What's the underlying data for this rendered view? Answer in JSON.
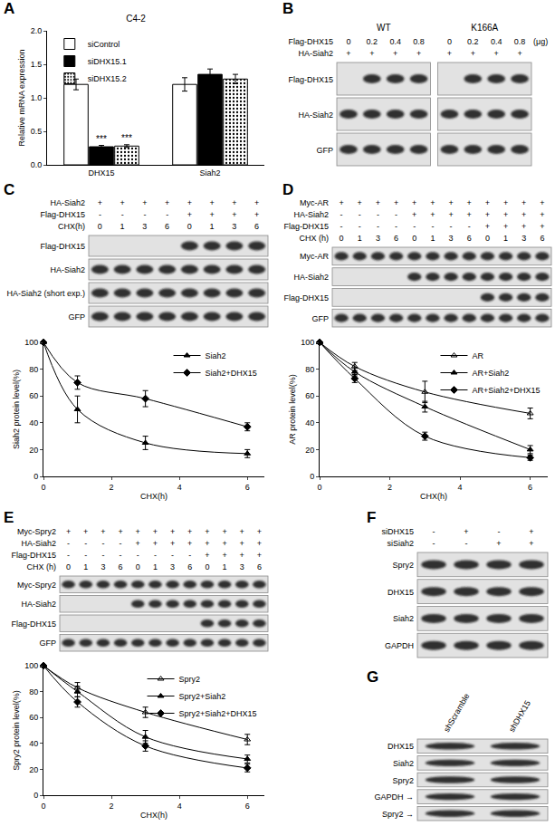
{
  "chart_data": [
    {
      "type": "bar",
      "title": "C4-2",
      "categories": [
        "DHX15",
        "Siah2"
      ],
      "series": [
        {
          "name": "siControl",
          "color": "#ffffff",
          "values": [
            1.2,
            1.2
          ],
          "errors": [
            0.08,
            0.1
          ]
        },
        {
          "name": "siDHX15.1",
          "color": "#000000",
          "values": [
            0.27,
            1.35
          ],
          "errors": [
            0.02,
            0.08
          ],
          "annotations": [
            "***",
            null
          ]
        },
        {
          "name": "siDHX15.2",
          "color": "#ffffff",
          "marker": "dotted",
          "values": [
            0.28,
            1.28
          ],
          "errors": [
            0.02,
            0.07
          ],
          "annotations": [
            "***",
            null
          ]
        }
      ],
      "ylabel": "Relative mRNA expression",
      "ylim": [
        0,
        2.0
      ],
      "yticks": [
        {
          "value": 0,
          "label": "0.0"
        },
        0.5,
        {
          "value": 1,
          "label": "1.0"
        },
        1.5,
        {
          "value": 2,
          "label": "2.0"
        }
      ],
      "legend": "upper left",
      "grid": false
    },
    {
      "type": "line",
      "x": [
        0,
        1,
        3,
        6
      ],
      "series": [
        {
          "name": "Siah2",
          "color": "#000000",
          "marker": "triangle",
          "values": [
            100,
            50,
            25,
            17
          ],
          "errors": [
            0,
            10,
            5,
            3
          ]
        },
        {
          "name": "Siah2+DHX15",
          "color": "#000000",
          "marker": "diamond",
          "values": [
            100,
            70,
            58,
            37
          ],
          "errors": [
            0,
            5,
            6,
            3
          ]
        }
      ],
      "xlabel": "CHX(h)",
      "ylabel": "Siah2 protein level(%)",
      "xlim": [
        0,
        6.5
      ],
      "xticks": [
        0,
        2,
        4,
        6
      ],
      "ylim": [
        0,
        100
      ],
      "yticks": [
        0,
        20,
        40,
        60,
        80,
        100
      ],
      "legend": "upper right",
      "grid": false,
      "line_style": "solid"
    },
    {
      "type": "line",
      "x": [
        0,
        1,
        3,
        6
      ],
      "series": [
        {
          "name": "AR",
          "color": "#000000",
          "marker": "triangle-open",
          "values": [
            100,
            82,
            63,
            47
          ],
          "errors": [
            0,
            3,
            8,
            4
          ]
        },
        {
          "name": "AR+Siah2",
          "color": "#000000",
          "marker": "triangle",
          "values": [
            100,
            78,
            52,
            20
          ],
          "errors": [
            0,
            3,
            4,
            3
          ]
        },
        {
          "name": "AR+Siah2+DHX15",
          "color": "#000000",
          "marker": "diamond",
          "values": [
            100,
            73,
            30,
            14
          ],
          "errors": [
            0,
            3,
            3,
            2
          ]
        }
      ],
      "xlabel": "CHX(h)",
      "ylabel": "AR protein level(%)",
      "xlim": [
        0,
        6.5
      ],
      "xticks": [
        0,
        2,
        4,
        6
      ],
      "ylim": [
        0,
        100
      ],
      "yticks": [
        0,
        20,
        40,
        60,
        80,
        100
      ],
      "legend": "upper right",
      "grid": false,
      "line_style": "solid"
    },
    {
      "type": "line",
      "x": [
        0,
        1,
        3,
        6
      ],
      "series": [
        {
          "name": "Spry2",
          "color": "#000000",
          "marker": "triangle-open",
          "values": [
            100,
            83,
            64,
            43
          ],
          "errors": [
            0,
            4,
            4,
            4
          ]
        },
        {
          "name": "Spry2+Siah2",
          "color": "#000000",
          "marker": "triangle",
          "values": [
            100,
            80,
            45,
            28
          ],
          "errors": [
            0,
            4,
            5,
            3
          ]
        },
        {
          "name": "Spry2+Siah2+DHX15",
          "color": "#000000",
          "marker": "diamond",
          "values": [
            100,
            72,
            38,
            21
          ],
          "errors": [
            0,
            4,
            4,
            3
          ]
        }
      ],
      "xlabel": "CHX(h)",
      "ylabel": "Spry2 protein level(%)",
      "xlim": [
        0,
        6.5
      ],
      "xticks": [
        0,
        2,
        4,
        6
      ],
      "ylim": [
        0,
        100
      ],
      "yticks": [
        0,
        20,
        40,
        60,
        80,
        100
      ],
      "legend": "upper right",
      "grid": false,
      "line_style": "solid"
    }
  ],
  "panels": [
    {
      "label": "A"
    },
    {
      "label": "B",
      "blot": {
        "groups": [
          "WT",
          "K166A"
        ],
        "headers": [
          {
            "label": "Flag-DHX15",
            "lanes": [
              "0",
              "0.2",
              "0.4",
              "0.8",
              "0",
              "0.2",
              "0.4",
              "0.8"
            ],
            "unit": "(μg)"
          },
          {
            "label": "HA-Siah2",
            "lanes": [
              "+",
              "+",
              "+",
              "+",
              "+",
              "+",
              "+",
              "+"
            ]
          }
        ],
        "rows": [
          "Flag-DHX15",
          "HA-Siah2",
          "GFP"
        ]
      }
    },
    {
      "label": "C",
      "blot": {
        "headers": [
          {
            "label": "HA-Siah2",
            "lanes": [
              "+",
              "+",
              "+",
              "+",
              "+",
              "+",
              "+",
              "+"
            ]
          },
          {
            "label": "Flag-DHX15",
            "lanes": [
              "-",
              "-",
              "-",
              "-",
              "+",
              "+",
              "+",
              "+"
            ]
          },
          {
            "label": "CHX(h)",
            "lanes": [
              "0",
              "1",
              "3",
              "6",
              "0",
              "1",
              "3",
              "6"
            ]
          }
        ],
        "rows": [
          "Flag-DHX15",
          "HA-Siah2",
          "HA-Siah2 (short exp.)",
          "GFP"
        ]
      }
    },
    {
      "label": "D",
      "blot": {
        "headers": [
          {
            "label": "Myc-AR",
            "lanes": [
              "+",
              "+",
              "+",
              "+",
              "+",
              "+",
              "+",
              "+",
              "+",
              "+",
              "+",
              "+"
            ]
          },
          {
            "label": "HA-Siah2",
            "lanes": [
              "-",
              "-",
              "-",
              "-",
              "+",
              "+",
              "+",
              "+",
              "+",
              "+",
              "+",
              "+"
            ]
          },
          {
            "label": "Flag-DHX15",
            "lanes": [
              "-",
              "-",
              "-",
              "-",
              "-",
              "-",
              "-",
              "-",
              "+",
              "+",
              "+",
              "+"
            ]
          },
          {
            "label": "CHX (h)",
            "lanes": [
              "0",
              "1",
              "3",
              "6",
              "0",
              "1",
              "3",
              "6",
              "0",
              "1",
              "3",
              "6"
            ]
          }
        ],
        "rows": [
          "Myc-AR",
          "HA-Siah2",
          "Flag-DHX15",
          "GFP"
        ]
      }
    },
    {
      "label": "E",
      "blot": {
        "headers": [
          {
            "label": "Myc-Spry2",
            "lanes": [
              "+",
              "+",
              "+",
              "+",
              "+",
              "+",
              "+",
              "+",
              "+",
              "+",
              "+",
              "+"
            ]
          },
          {
            "label": "HA-Siah2",
            "lanes": [
              "-",
              "-",
              "-",
              "-",
              "+",
              "+",
              "+",
              "+",
              "+",
              "+",
              "+",
              "+"
            ]
          },
          {
            "label": "Flag-DHX15",
            "lanes": [
              "-",
              "-",
              "-",
              "-",
              "-",
              "-",
              "-",
              "-",
              "+",
              "+",
              "+",
              "+"
            ]
          },
          {
            "label": "CHX (h)",
            "lanes": [
              "0",
              "1",
              "3",
              "6",
              "0",
              "1",
              "3",
              "6",
              "0",
              "1",
              "3",
              "6"
            ]
          }
        ],
        "rows": [
          "Myc-Spry2",
          "HA-Siah2",
          "Flag-DHX15",
          "GFP"
        ]
      }
    },
    {
      "label": "F",
      "blot": {
        "headers": [
          {
            "label": "siDHX15",
            "lanes": [
              "-",
              "+",
              "-",
              "+"
            ]
          },
          {
            "label": "siSiah2",
            "lanes": [
              "-",
              "-",
              "+",
              "+"
            ]
          }
        ],
        "rows": [
          "Spry2",
          "DHX15",
          "Siah2",
          "GAPDH"
        ]
      }
    },
    {
      "label": "G",
      "blot": {
        "headers": [
          {
            "lanes": [
              "shScramble",
              "shDHX15"
            ]
          }
        ],
        "rows": [
          "DHX15",
          "Siah2",
          "Spry2",
          "GAPDH →",
          "Spry2 →"
        ]
      }
    }
  ]
}
